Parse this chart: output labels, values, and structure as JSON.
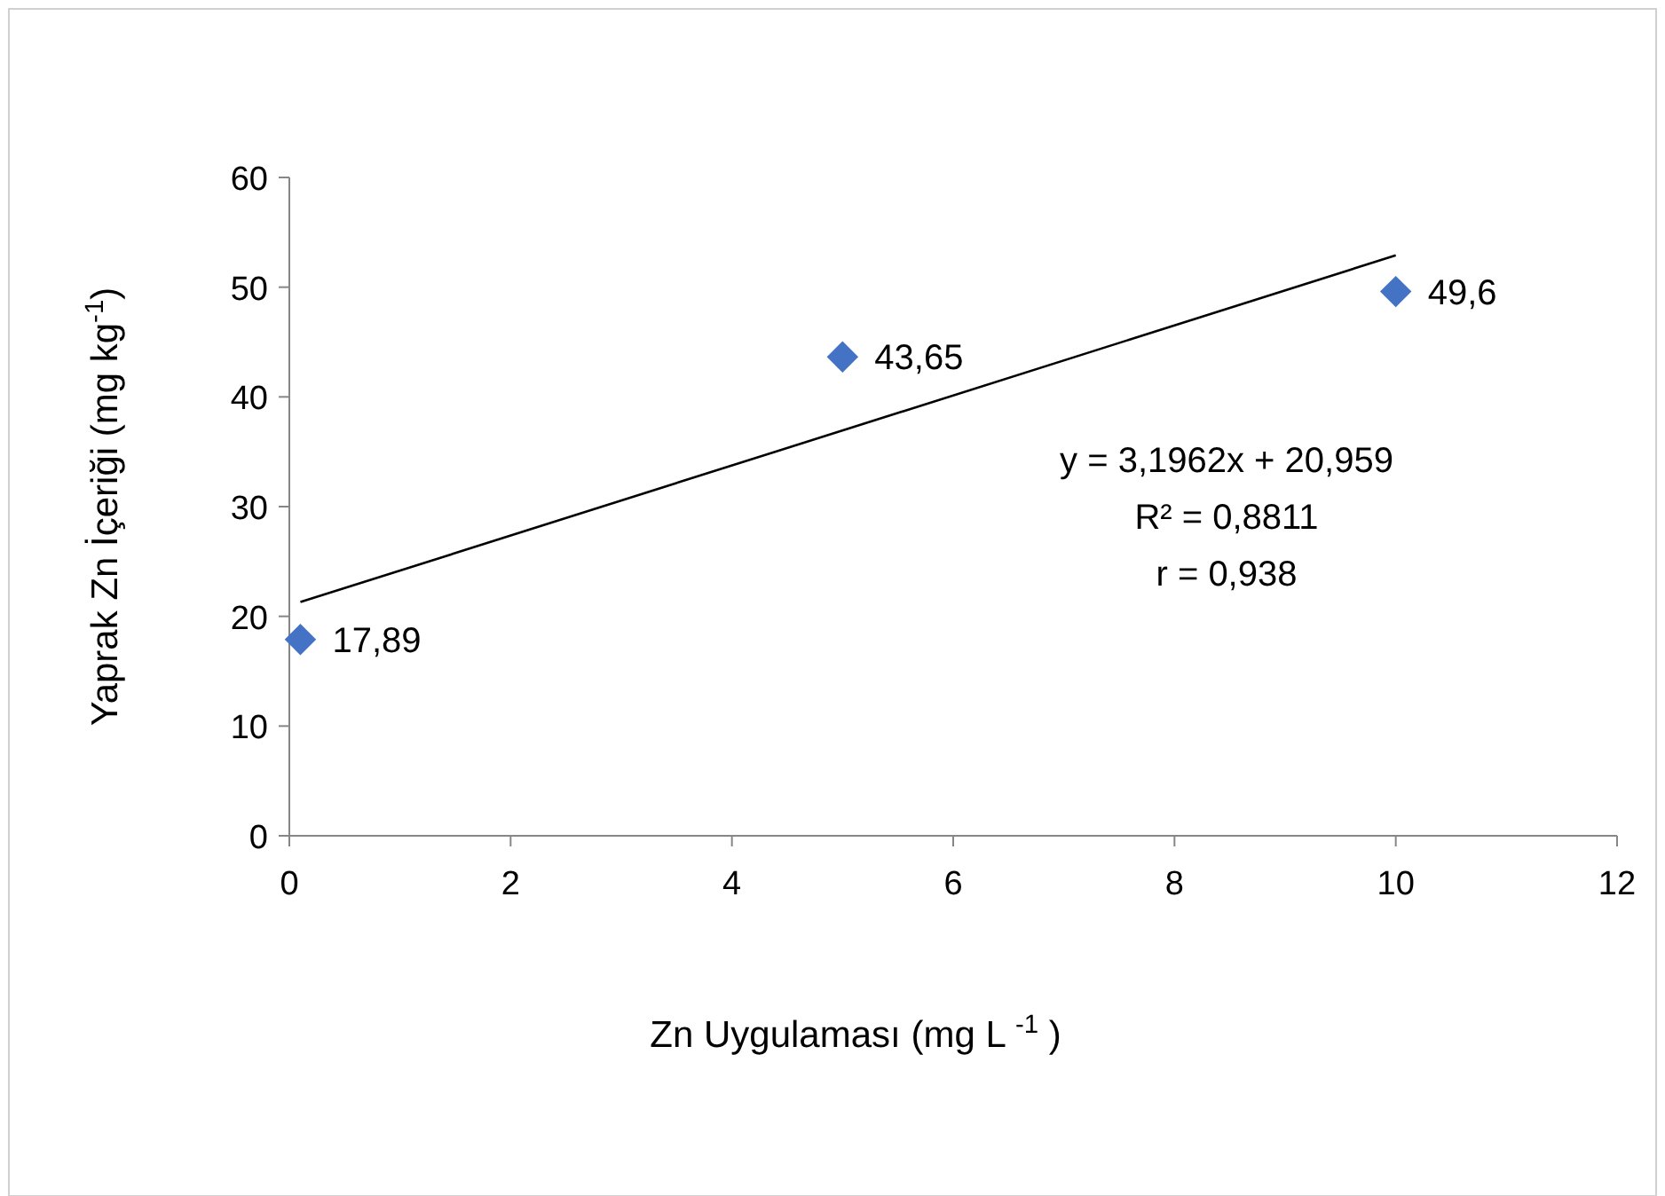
{
  "chart_data": {
    "type": "scatter",
    "xlabel": "Zn Uygulaması (mg L $^{-1}$ )",
    "ylabel": "Yaprak Zn İçeriği (mg kg$^{-1}$)",
    "xlim": [
      0,
      12
    ],
    "xticks": [
      0,
      2,
      4,
      6,
      8,
      10,
      12
    ],
    "ylim": [
      0,
      60
    ],
    "yticks": [
      0,
      10,
      20,
      30,
      40,
      50,
      60
    ],
    "marker": "diamond",
    "series": [
      {
        "type": "scatter",
        "color": "#4472c4",
        "x": [
          0.1,
          5,
          10
        ],
        "values": [
          17.89,
          43.65,
          49.6
        ],
        "value_labels": [
          "17,89",
          "43,65",
          "49,6"
        ]
      },
      {
        "type": "line",
        "color": "#000000",
        "marker": "none",
        "x": [
          0.1,
          10
        ],
        "values": [
          21.3,
          52.9
        ]
      }
    ],
    "annotations": [
      "y = 3,1962x + 20,959",
      "R² = 0,8811",
      "r = 0,938"
    ]
  }
}
